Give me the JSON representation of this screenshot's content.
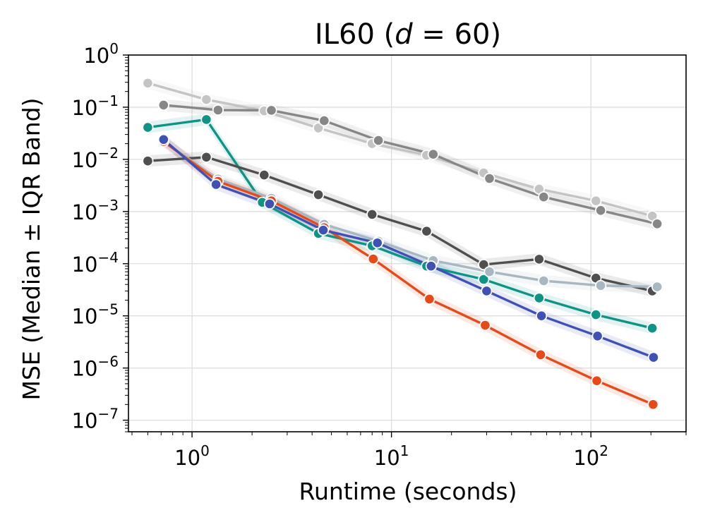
{
  "chart_data": {
    "type": "line",
    "title_main": "IL60 (",
    "title_var": "d",
    "title_eq": " = 60)",
    "xlabel": "Runtime (seconds)",
    "ylabel": "MSE (Median ± IQR Band)",
    "xscale": "log",
    "yscale": "log",
    "xlim": [
      0.48,
      300
    ],
    "ylim": [
      6e-08,
      1.0
    ],
    "grid": true,
    "xticks": [
      {
        "value": 1,
        "base": "10",
        "exp": "0"
      },
      {
        "value": 10,
        "base": "10",
        "exp": "1"
      },
      {
        "value": 100,
        "base": "10",
        "exp": "2"
      }
    ],
    "yticks": [
      {
        "value": 1,
        "base": "10",
        "exp": "0"
      },
      {
        "value": 0.1,
        "base": "10",
        "exp": "−1"
      },
      {
        "value": 0.01,
        "base": "10",
        "exp": "−2"
      },
      {
        "value": 0.001,
        "base": "10",
        "exp": "−3"
      },
      {
        "value": 0.0001,
        "base": "10",
        "exp": "−4"
      },
      {
        "value": 1e-05,
        "base": "10",
        "exp": "−5"
      },
      {
        "value": 1e-06,
        "base": "10",
        "exp": "−6"
      },
      {
        "value": 1e-07,
        "base": "10",
        "exp": "−7"
      }
    ],
    "series": [
      {
        "key": "light-gray",
        "color": "#c4c4c4",
        "x": [
          0.6,
          1.18,
          2.3,
          4.3,
          8.0,
          15.0,
          29.0,
          55.0,
          106.0,
          203.0
        ],
        "y": [
          0.29,
          0.14,
          0.085,
          0.04,
          0.02,
          0.012,
          0.0055,
          0.0027,
          0.0016,
          0.00082
        ]
      },
      {
        "key": "mid-gray",
        "color": "#878787",
        "x": [
          0.72,
          1.35,
          2.5,
          4.6,
          8.6,
          16.2,
          31.0,
          58.0,
          112.0,
          215.0
        ],
        "y": [
          0.11,
          0.088,
          0.087,
          0.055,
          0.023,
          0.0125,
          0.0043,
          0.0019,
          0.00105,
          0.00058
        ]
      },
      {
        "key": "teal",
        "color": "#0e9486",
        "x": [
          0.6,
          1.18,
          2.25,
          4.3,
          8.0,
          15.0,
          29.0,
          55.0,
          106.0,
          203.0
        ],
        "y": [
          0.041,
          0.058,
          0.0015,
          0.00038,
          0.00022,
          9e-05,
          5e-05,
          2.2e-05,
          1.05e-05,
          5.8e-06
        ]
      },
      {
        "key": "dark-gray",
        "color": "#4f4f4f",
        "x": [
          0.6,
          1.18,
          2.3,
          4.3,
          8.0,
          15.0,
          29.0,
          55.0,
          106.0,
          203.0
        ],
        "y": [
          0.0093,
          0.011,
          0.005,
          0.0021,
          0.00088,
          0.00042,
          9.6e-05,
          0.000122,
          5.3e-05,
          3e-05
        ]
      },
      {
        "key": "blue-gray",
        "color": "#a7b8c2",
        "x": [
          0.72,
          1.35,
          2.5,
          4.6,
          8.6,
          16.2,
          31.0,
          58.0,
          112.0,
          215.0
        ],
        "y": [
          0.022,
          0.0042,
          0.0018,
          0.00057,
          0.00027,
          0.000115,
          7e-05,
          4.7e-05,
          3.8e-05,
          3.6e-05
        ]
      },
      {
        "key": "orange-red",
        "color": "#e64a19",
        "x": [
          0.72,
          1.35,
          2.5,
          4.6,
          8.1,
          15.5,
          29.5,
          56.0,
          107.0,
          205.0
        ],
        "y": [
          0.022,
          0.0038,
          0.0016,
          0.00049,
          0.000123,
          2.1e-05,
          6.6e-06,
          1.8e-06,
          5.7e-07,
          2e-07
        ]
      },
      {
        "key": "indigo",
        "color": "#3f51b5",
        "x": [
          0.72,
          1.32,
          2.45,
          4.55,
          8.5,
          15.8,
          30.0,
          56.5,
          108.0,
          206.0
        ],
        "y": [
          0.024,
          0.0033,
          0.0014,
          0.00044,
          0.00025,
          9e-05,
          3e-05,
          1e-05,
          4.1e-06,
          1.6e-06
        ]
      }
    ]
  }
}
